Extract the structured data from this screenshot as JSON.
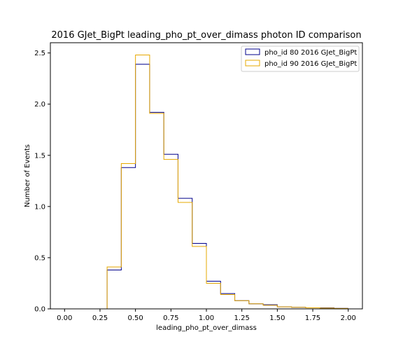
{
  "chart_data": {
    "type": "histogram",
    "title": "2016 GJet_BigPt leading_pho_pt_over_dimass photon ID comparison",
    "xlabel": "leading_pho_pt_over_dimass",
    "ylabel": "Number of Events",
    "xlim": [
      -0.1,
      2.1
    ],
    "ylim": [
      0,
      2.6
    ],
    "xticks": [
      "0.00",
      "0.25",
      "0.50",
      "0.75",
      "1.00",
      "1.25",
      "1.50",
      "1.75",
      "2.00"
    ],
    "yticks": [
      "0.0",
      "0.5",
      "1.0",
      "1.5",
      "2.0",
      "2.5"
    ],
    "bin_edges": [
      0.0,
      0.1,
      0.2,
      0.3,
      0.4,
      0.5,
      0.6,
      0.7,
      0.8,
      0.9,
      1.0,
      1.1,
      1.2,
      1.3,
      1.4,
      1.5,
      1.6,
      1.7,
      1.8,
      1.9,
      2.0
    ],
    "legend_position": "top-right",
    "grid": false,
    "series": [
      {
        "name": "pho_id 80 2016 GJet_BigPt",
        "color": "#00008b",
        "values": [
          0,
          0,
          0,
          0.38,
          1.38,
          2.39,
          1.92,
          1.51,
          1.08,
          0.64,
          0.27,
          0.15,
          0.08,
          0.05,
          0.04,
          0.02,
          0.015,
          0.01,
          0.01,
          0.005
        ]
      },
      {
        "name": "pho_id 90 2016 GJet_BigPt",
        "color": "#e6a800",
        "values": [
          0,
          0,
          0,
          0.41,
          1.42,
          2.48,
          1.91,
          1.46,
          1.04,
          0.61,
          0.25,
          0.14,
          0.08,
          0.05,
          0.035,
          0.02,
          0.015,
          0.01,
          0.008,
          0.004
        ]
      }
    ]
  }
}
